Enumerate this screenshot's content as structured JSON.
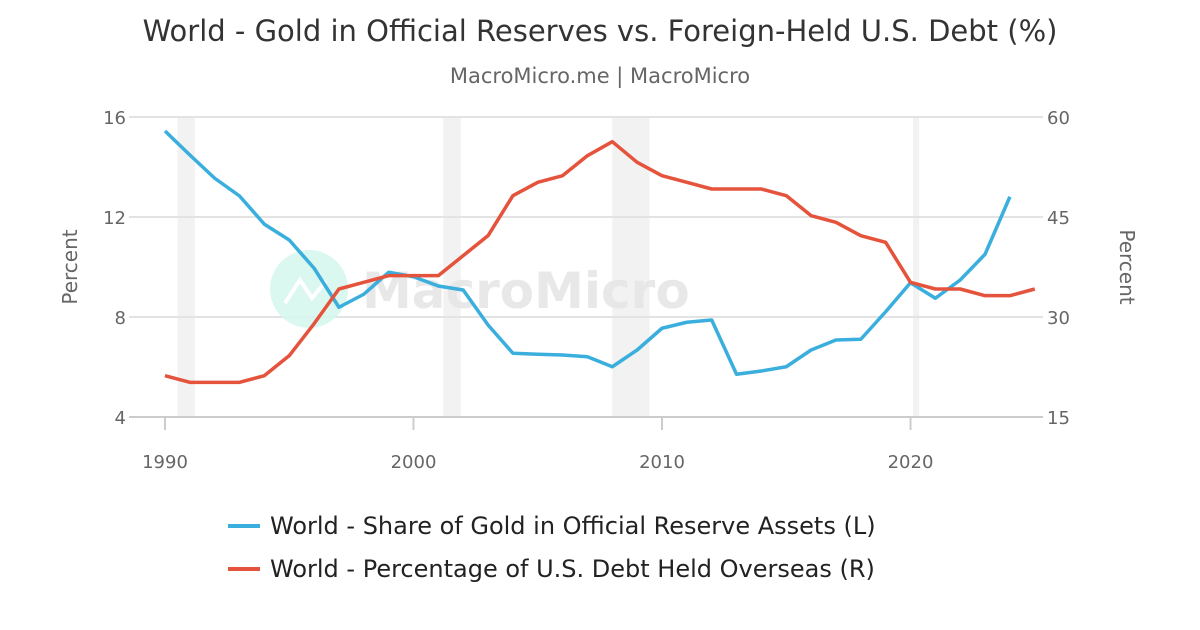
{
  "chart_data": {
    "type": "line",
    "title": "World - Gold in Official Reserves vs. Foreign-Held U.S. Debt (%)",
    "subtitle": "MacroMicro.me | MacroMicro",
    "watermark": "MacroMicro",
    "x_ticks": [
      "1990",
      "2000",
      "2010",
      "2020"
    ],
    "xlim": [
      1990,
      2025
    ],
    "left_axis": {
      "label": "Percent",
      "ylim": [
        4,
        16
      ],
      "ticks": [
        "4",
        "8",
        "12",
        "16"
      ]
    },
    "right_axis": {
      "label": "Percent",
      "ylim": [
        15,
        60
      ],
      "ticks": [
        "15",
        "30",
        "45",
        "60"
      ]
    },
    "grid": true,
    "legend_position": "bottom",
    "shaded_periods": [
      [
        1990.5,
        1991.2
      ],
      [
        2001.2,
        2001.9
      ],
      [
        2008.0,
        2009.5
      ],
      [
        2020.1,
        2020.35
      ]
    ],
    "series": [
      {
        "name": "World - Share of Gold in Official Reserve Assets (L)",
        "axis": "left",
        "color": "#3aaedc",
        "x": [
          1990,
          1991,
          1992,
          1993,
          1994,
          1995,
          1996,
          1997,
          1998,
          1999,
          2000,
          2001,
          2002,
          2003,
          2004,
          2005,
          2006,
          2007,
          2008,
          2009,
          2010,
          2011,
          2012,
          2013,
          2014,
          2015,
          2016,
          2017,
          2018,
          2019,
          2020,
          2021,
          2022,
          2023,
          2024
        ],
        "values": [
          15.44,
          14.48,
          13.55,
          12.84,
          11.71,
          11.08,
          9.95,
          8.39,
          8.91,
          9.79,
          9.61,
          9.24,
          9.08,
          7.68,
          6.55,
          6.51,
          6.48,
          6.41,
          6.01,
          6.68,
          7.55,
          7.79,
          7.88,
          5.71,
          5.84,
          6.01,
          6.68,
          7.08,
          7.11,
          8.21,
          9.37,
          8.75,
          9.48,
          10.51,
          12.81
        ]
      },
      {
        "name": "World - Percentage of U.S. Debt Held Overseas (R)",
        "axis": "right",
        "color": "#e5533c",
        "x": [
          1990,
          1991,
          1992,
          1993,
          1994,
          1995,
          1996,
          1997,
          1998,
          1999,
          2000,
          2001,
          2002,
          2003,
          2004,
          2005,
          2006,
          2007,
          2008,
          2009,
          2010,
          2011,
          2012,
          2013,
          2014,
          2015,
          2016,
          2017,
          2018,
          2019,
          2020,
          2021,
          2022,
          2023,
          2024,
          2025
        ],
        "values": [
          21.2,
          20.2,
          20.2,
          20.2,
          21.2,
          24.2,
          29.0,
          34.2,
          35.2,
          36.2,
          36.2,
          36.2,
          39.2,
          42.2,
          48.2,
          50.2,
          51.2,
          54.2,
          56.3,
          53.2,
          51.2,
          50.2,
          49.2,
          49.2,
          49.2,
          48.2,
          45.2,
          44.2,
          42.2,
          41.2,
          35.2,
          34.2,
          34.2,
          33.2,
          33.2,
          34.2
        ]
      }
    ]
  }
}
